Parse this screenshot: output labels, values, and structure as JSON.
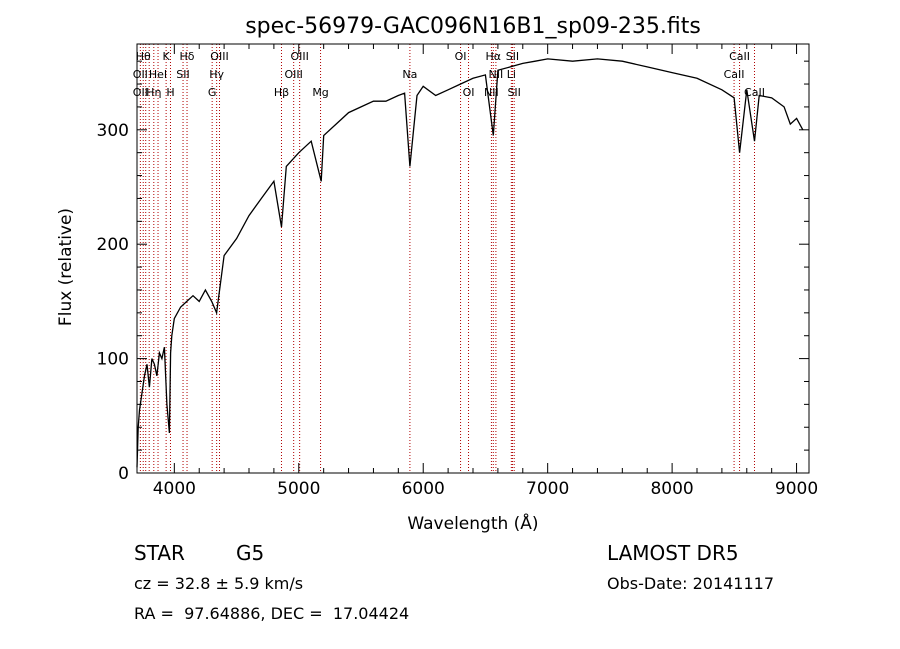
{
  "chart_data": {
    "type": "line",
    "title": "spec-56979-GAC096N16B1_sp09-235.fits",
    "xlabel": "Wavelength (Å)",
    "ylabel": "Flux (relative)",
    "xlim": [
      3700,
      9100
    ],
    "ylim": [
      0,
      375
    ],
    "x_ticks": [
      4000,
      5000,
      6000,
      7000,
      8000,
      9000
    ],
    "y_ticks": [
      0,
      100,
      200,
      300
    ],
    "grid": false,
    "line_color": "#000000",
    "marker_color": "#b00000",
    "series": [
      {
        "x": [
          3700,
          3710,
          3720,
          3740,
          3760,
          3780,
          3800,
          3820,
          3840,
          3860,
          3880,
          3900,
          3920,
          3940,
          3960,
          3970,
          3980,
          4000,
          4050,
          4100,
          4150,
          4200,
          4250,
          4300,
          4340,
          4400,
          4500,
          4600,
          4700,
          4800,
          4861,
          4900,
          5000,
          5100,
          5180,
          5200,
          5300,
          5400,
          5500,
          5600,
          5700,
          5800,
          5850,
          5893,
          5950,
          6000,
          6100,
          6200,
          6300,
          6400,
          6500,
          6563,
          6600,
          6700,
          6800,
          6900,
          7000,
          7200,
          7400,
          7600,
          7800,
          8000,
          8200,
          8400,
          8498,
          8542,
          8600,
          8662,
          8700,
          8800,
          8900,
          8950,
          9000,
          9050
        ],
        "y": [
          5,
          40,
          55,
          70,
          85,
          95,
          75,
          100,
          95,
          85,
          105,
          100,
          110,
          60,
          35,
          105,
          120,
          135,
          145,
          150,
          155,
          150,
          160,
          150,
          140,
          190,
          205,
          225,
          240,
          255,
          215,
          268,
          280,
          290,
          255,
          295,
          305,
          315,
          320,
          325,
          325,
          330,
          332,
          268,
          330,
          338,
          330,
          335,
          340,
          345,
          348,
          295,
          352,
          355,
          358,
          360,
          362,
          360,
          362,
          360,
          355,
          350,
          345,
          335,
          328,
          280,
          335,
          290,
          330,
          328,
          320,
          305,
          310,
          300
        ]
      }
    ],
    "lines": [
      {
        "x": 3727,
        "labels": [
          "OII"
        ]
      },
      {
        "x": 3750,
        "labels": [
          "Hθ"
        ]
      },
      {
        "x": 3770,
        "labels": [
          "Hη"
        ]
      },
      {
        "x": 3798,
        "labels": [
          "OII"
        ]
      },
      {
        "x": 3835,
        "labels": [
          "Hη"
        ]
      },
      {
        "x": 3869,
        "labels": [
          "HeI"
        ]
      },
      {
        "x": 3934,
        "labels": [
          "K"
        ]
      },
      {
        "x": 3969,
        "labels": [
          "H"
        ]
      },
      {
        "x": 4070,
        "labels": [
          "SII"
        ]
      },
      {
        "x": 4102,
        "labels": [
          "Hδ"
        ]
      },
      {
        "x": 4304,
        "labels": [
          "G"
        ]
      },
      {
        "x": 4340,
        "labels": [
          "Hγ"
        ]
      },
      {
        "x": 4363,
        "labels": [
          "OIII"
        ]
      },
      {
        "x": 4861,
        "labels": [
          "Hβ"
        ]
      },
      {
        "x": 4959,
        "labels": [
          "OIII"
        ]
      },
      {
        "x": 5007,
        "labels": [
          "OIII"
        ]
      },
      {
        "x": 5175,
        "labels": [
          "Mg"
        ]
      },
      {
        "x": 5893,
        "labels": [
          "Na"
        ]
      },
      {
        "x": 6300,
        "labels": [
          "OI"
        ]
      },
      {
        "x": 6364,
        "labels": [
          "OI"
        ]
      },
      {
        "x": 6548,
        "labels": [
          "NII"
        ]
      },
      {
        "x": 6563,
        "labels": [
          "Hα"
        ]
      },
      {
        "x": 6584,
        "labels": [
          "NII"
        ]
      },
      {
        "x": 6708,
        "labels": [
          "Li"
        ]
      },
      {
        "x": 6717,
        "labels": [
          "SII"
        ]
      },
      {
        "x": 6731,
        "labels": [
          "SII"
        ]
      },
      {
        "x": 8498,
        "labels": [
          "CaII"
        ]
      },
      {
        "x": 8542,
        "labels": [
          "CaII"
        ]
      },
      {
        "x": 8662,
        "labels": [
          "CaII"
        ]
      }
    ],
    "line_label_rows": [
      [
        {
          "text": "Hθ",
          "x": 3750
        },
        {
          "text": "K",
          "x": 3934
        },
        {
          "text": "Hδ",
          "x": 4102
        },
        {
          "text": "OIII",
          "x": 4363
        },
        {
          "text": "OIII",
          "x": 5007
        },
        {
          "text": "OI",
          "x": 6300
        },
        {
          "text": "Hα",
          "x": 6563
        },
        {
          "text": "SII",
          "x": 6717
        },
        {
          "text": "CaII",
          "x": 8542
        }
      ],
      [
        {
          "text": "OII",
          "x": 3727
        },
        {
          "text": "HeI",
          "x": 3869
        },
        {
          "text": "SII",
          "x": 4070
        },
        {
          "text": "Hγ",
          "x": 4340
        },
        {
          "text": "OIII",
          "x": 4959
        },
        {
          "text": "Na",
          "x": 5893
        },
        {
          "text": "NII",
          "x": 6584
        },
        {
          "text": "Li",
          "x": 6708
        },
        {
          "text": "CaII",
          "x": 8498
        }
      ],
      [
        {
          "text": "OII",
          "x": 3727
        },
        {
          "text": "Hη",
          "x": 3835
        },
        {
          "text": "H",
          "x": 3969
        },
        {
          "text": "G",
          "x": 4304
        },
        {
          "text": "Hβ",
          "x": 4861
        },
        {
          "text": "Mg",
          "x": 5175
        },
        {
          "text": "OI",
          "x": 6364
        },
        {
          "text": "NII",
          "x": 6548
        },
        {
          "text": "SII",
          "x": 6731
        },
        {
          "text": "CaII",
          "x": 8662
        }
      ]
    ]
  },
  "info": {
    "class": "STAR",
    "subclass": "G5",
    "survey": "LAMOST DR5",
    "cz": "cz = 32.8 ± 5.9 km/s",
    "obs_date": "Obs-Date: 20141117",
    "coords": "RA =  97.64886, DEC =  17.04424"
  }
}
